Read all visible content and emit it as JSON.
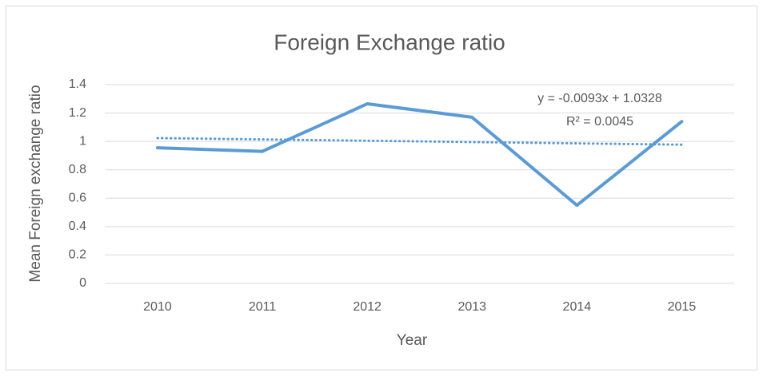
{
  "chart_data": {
    "type": "line",
    "title": "Foreign Exchange ratio",
    "x_label": "Year",
    "y_label": "Mean Foreign exchange ratio",
    "categories": [
      "2010",
      "2011",
      "2012",
      "2013",
      "2014",
      "2015"
    ],
    "series": [
      {
        "name": "Mean Foreign exchange ratio",
        "color": "#5b9bd5",
        "values": [
          0.955,
          0.93,
          1.265,
          1.17,
          0.55,
          1.14
        ]
      }
    ],
    "trendline": {
      "color": "#5b9bd5",
      "equation": "y = -0.0093x + 1.0328",
      "r_squared": "R² = 0.0045",
      "values": [
        1.0235,
        1.0142,
        1.0049,
        0.9956,
        0.9863,
        0.977
      ]
    },
    "ylim": [
      0,
      1.4
    ],
    "yticks": [
      0,
      0.2,
      0.4,
      0.6,
      0.8,
      1,
      1.2,
      1.4
    ],
    "grid": true
  }
}
